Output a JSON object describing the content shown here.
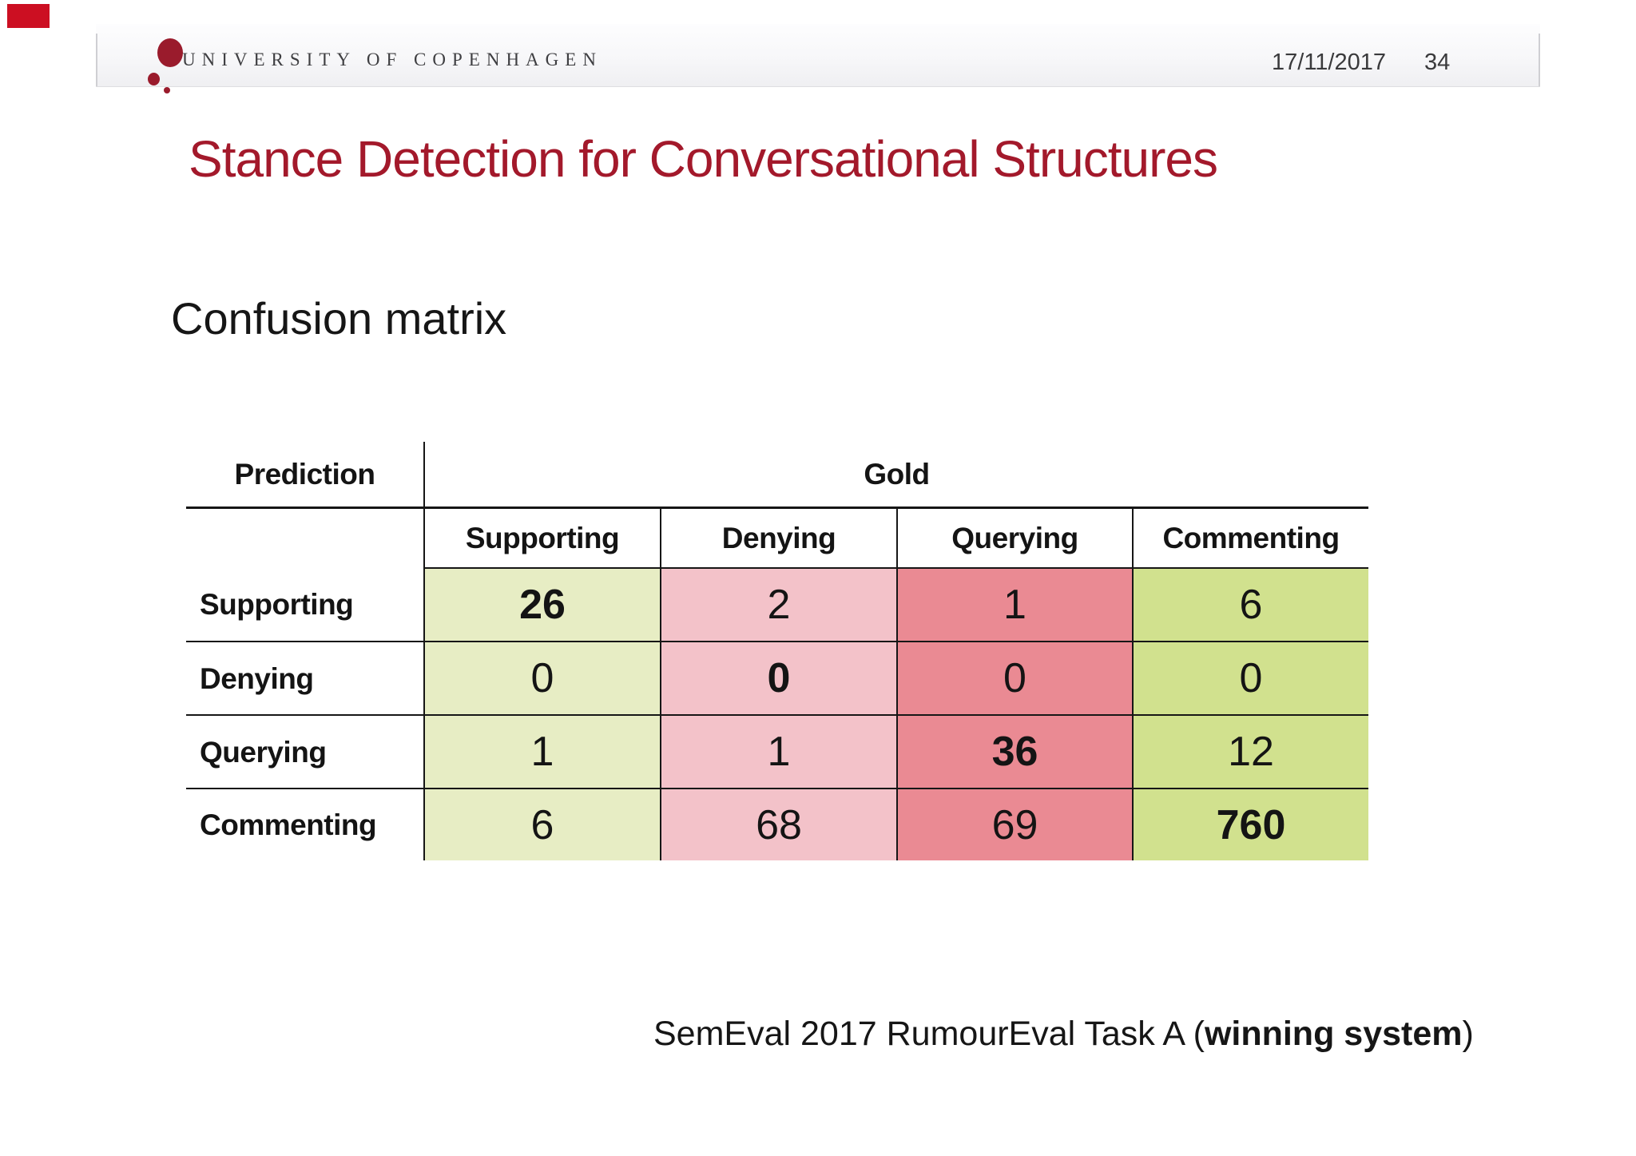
{
  "header": {
    "university": "UNIVERSITY OF COPENHAGEN",
    "date": "17/11/2017",
    "page_number": "34"
  },
  "title": "Stance Detection for Conversational Structures",
  "subtitle": "Confusion matrix",
  "matrix": {
    "prediction_label": "Prediction",
    "gold_label": "Gold",
    "columns": [
      "Supporting",
      "Denying",
      "Querying",
      "Commenting"
    ],
    "rows": [
      "Supporting",
      "Denying",
      "Querying",
      "Commenting"
    ],
    "values": [
      [
        26,
        2,
        1,
        6
      ],
      [
        0,
        0,
        0,
        0
      ],
      [
        1,
        1,
        36,
        12
      ],
      [
        6,
        68,
        69,
        760
      ]
    ]
  },
  "chart_data": {
    "type": "table",
    "title": "Confusion matrix",
    "row_axis_label": "Prediction",
    "col_axis_label": "Gold",
    "columns": [
      "Supporting",
      "Denying",
      "Querying",
      "Commenting"
    ],
    "rows": [
      "Supporting",
      "Denying",
      "Querying",
      "Commenting"
    ],
    "values": [
      [
        26,
        2,
        1,
        6
      ],
      [
        0,
        0,
        0,
        0
      ],
      [
        1,
        1,
        36,
        12
      ],
      [
        6,
        68,
        69,
        760
      ]
    ],
    "bold_diagonal": true
  },
  "footer": {
    "prefix": "SemEval 2017 RumourEval Task A (",
    "bold": "winning system",
    "suffix": ")"
  },
  "colors": {
    "title": "#a3192b",
    "logo": "#9a1b2c",
    "marker": "#cc0f22",
    "col_supporting": "#e7edc4",
    "col_denying": "#f3c2c9",
    "col_querying": "#ea8a93",
    "col_commenting": "#d1e18e"
  }
}
